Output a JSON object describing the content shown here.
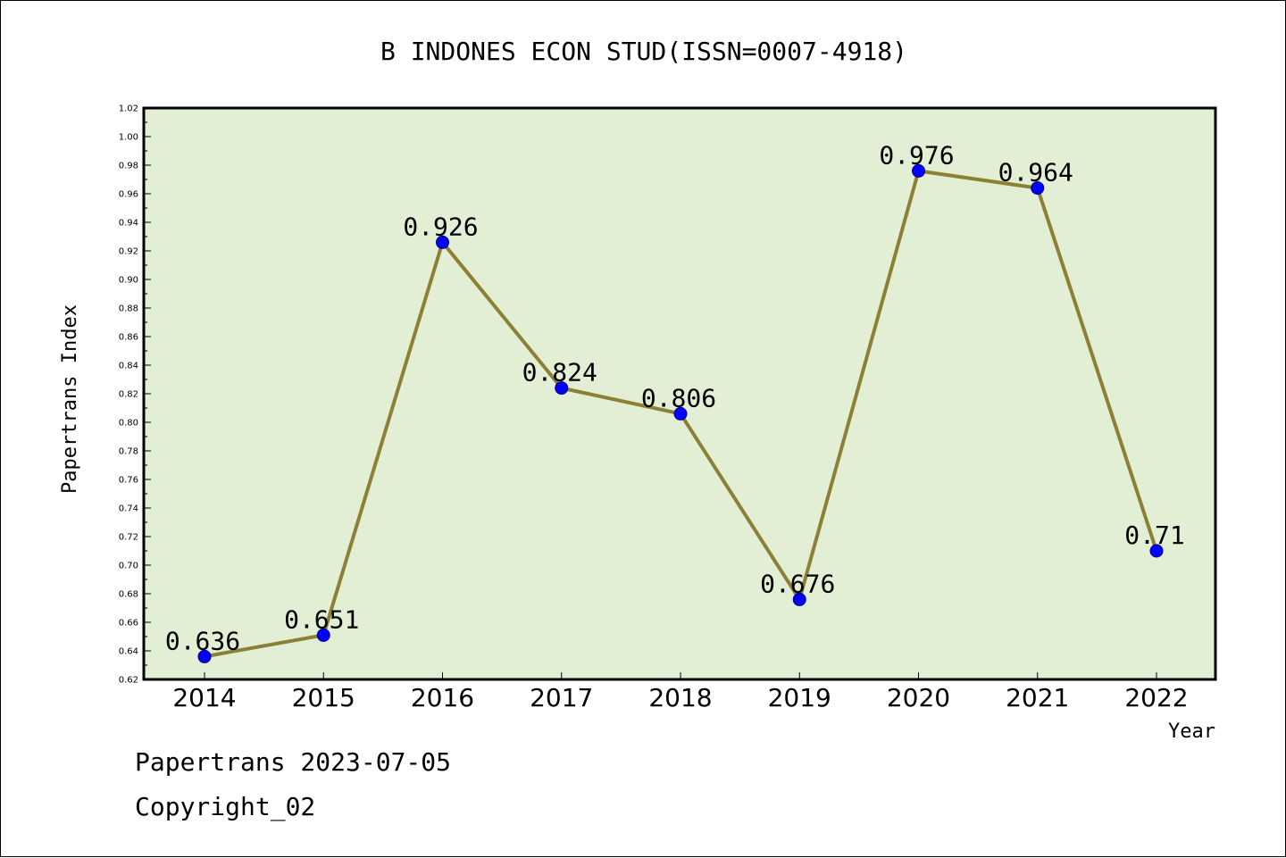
{
  "chart_data": {
    "type": "line",
    "title": "B INDONES ECON STUD(ISSN=0007-4918)",
    "xlabel": "Year",
    "ylabel": "Papertrans Index",
    "categories": [
      "2014",
      "2015",
      "2016",
      "2017",
      "2018",
      "2019",
      "2020",
      "2021",
      "2022"
    ],
    "series": [
      {
        "values": [
          0.636,
          0.651,
          0.926,
          0.824,
          0.806,
          0.676,
          0.976,
          0.964,
          0.71
        ]
      }
    ],
    "data_labels": [
      "0.636",
      "0.651",
      "0.926",
      "0.824",
      "0.806",
      "0.676",
      "0.976",
      "0.964",
      "0.71"
    ],
    "ylim": [
      0.62,
      1.02
    ],
    "yticks": [
      "0.62",
      "0.64",
      "0.66",
      "0.68",
      "0.70",
      "0.72",
      "0.74",
      "0.76",
      "0.78",
      "0.80",
      "0.82",
      "0.84",
      "0.86",
      "0.88",
      "0.90",
      "0.92",
      "0.94",
      "0.96",
      "0.98",
      "1.00",
      "1.02"
    ],
    "grid": false,
    "colors": {
      "plot_background": "#e2efd5",
      "line": "#8b8035",
      "marker": "#0000ff",
      "marker_edge": "#000080"
    }
  },
  "footer": {
    "line1": "Papertrans 2023-07-05",
    "line2": "Copyright_02"
  }
}
